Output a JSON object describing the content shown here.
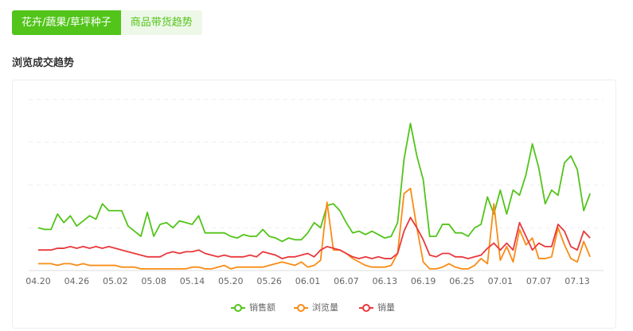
{
  "tabs": [
    "花卉/蔬果/草坪种子",
    "商品带货趋势"
  ],
  "section_title": "浏览成交趋势",
  "chart_data": {
    "type": "line",
    "categories": [
      "04.20",
      null,
      null,
      null,
      null,
      null,
      "04.26",
      null,
      null,
      null,
      null,
      null,
      "05.02",
      null,
      null,
      null,
      null,
      null,
      "05.08",
      null,
      null,
      null,
      null,
      null,
      "05.14",
      null,
      null,
      null,
      null,
      null,
      "05.20",
      null,
      null,
      null,
      null,
      null,
      "05.26",
      null,
      null,
      null,
      null,
      null,
      "06.01",
      null,
      null,
      null,
      null,
      null,
      "06.07",
      null,
      null,
      null,
      null,
      null,
      "06.13",
      null,
      null,
      null,
      null,
      null,
      "06.19",
      null,
      null,
      null,
      null,
      null,
      "06.25",
      null,
      null,
      null,
      null,
      null,
      "07.01",
      null,
      null,
      null,
      null,
      null,
      "07.07",
      null,
      null,
      null,
      null,
      null,
      "07.13",
      null,
      null
    ],
    "series": [
      {
        "name": "销售额",
        "color": "#52c41a",
        "values": [
          25,
          24,
          24,
          33,
          28,
          32,
          26,
          29,
          32,
          30,
          39,
          35,
          35,
          35,
          26,
          23,
          20,
          34,
          20,
          27,
          28,
          25,
          29,
          28,
          27,
          32,
          22,
          22,
          22,
          22,
          20,
          19,
          21,
          20,
          20,
          24,
          20,
          19,
          17,
          19,
          18,
          18,
          22,
          28,
          25,
          38,
          39,
          35,
          28,
          22,
          23,
          21,
          23,
          21,
          19,
          20,
          28,
          65,
          86,
          67,
          53,
          20,
          20,
          27,
          27,
          22,
          22,
          20,
          25,
          27,
          43,
          33,
          47,
          33,
          47,
          44,
          56,
          74,
          60,
          39,
          47,
          44,
          63,
          67,
          59,
          35,
          45
        ]
      },
      {
        "name": "浏览量",
        "color": "#fa8c16",
        "values": [
          4,
          4,
          4,
          3,
          4,
          4,
          3,
          4,
          3,
          3,
          3,
          3,
          3,
          2,
          2,
          2,
          1,
          1,
          1,
          1,
          1,
          1,
          1,
          1,
          2,
          2,
          1,
          1,
          2,
          3,
          1,
          2,
          2,
          2,
          2,
          2,
          3,
          4,
          5,
          4,
          3,
          5,
          2,
          3,
          6,
          40,
          12,
          12,
          10,
          7,
          5,
          3,
          2,
          2,
          2,
          3,
          10,
          45,
          48,
          25,
          5,
          1,
          1,
          2,
          4,
          2,
          1,
          1,
          3,
          7,
          4,
          39,
          6,
          14,
          5,
          24,
          15,
          19,
          7,
          7,
          8,
          25,
          15,
          7,
          5,
          17,
          8
        ]
      },
      {
        "name": "销量",
        "color": "#e8393c",
        "values": [
          12,
          12,
          12,
          13,
          13,
          14,
          13,
          14,
          13,
          14,
          13,
          14,
          13,
          12,
          11,
          10,
          9,
          8,
          8,
          8,
          10,
          11,
          10,
          11,
          11,
          12,
          10,
          9,
          8,
          9,
          8,
          8,
          8,
          9,
          8,
          11,
          10,
          9,
          7,
          8,
          8,
          9,
          10,
          8,
          12,
          14,
          13,
          12,
          10,
          8,
          7,
          8,
          7,
          8,
          7,
          7,
          10,
          23,
          31,
          25,
          18,
          9,
          8,
          10,
          10,
          8,
          8,
          7,
          8,
          9,
          13,
          16,
          12,
          16,
          12,
          28,
          20,
          12,
          16,
          14,
          14,
          27,
          23,
          14,
          12,
          23,
          19
        ]
      }
    ],
    "ylim": [
      0,
      100
    ],
    "yticks": [
      0,
      25,
      50,
      75,
      100
    ],
    "grid": true,
    "legend": "bottom"
  }
}
